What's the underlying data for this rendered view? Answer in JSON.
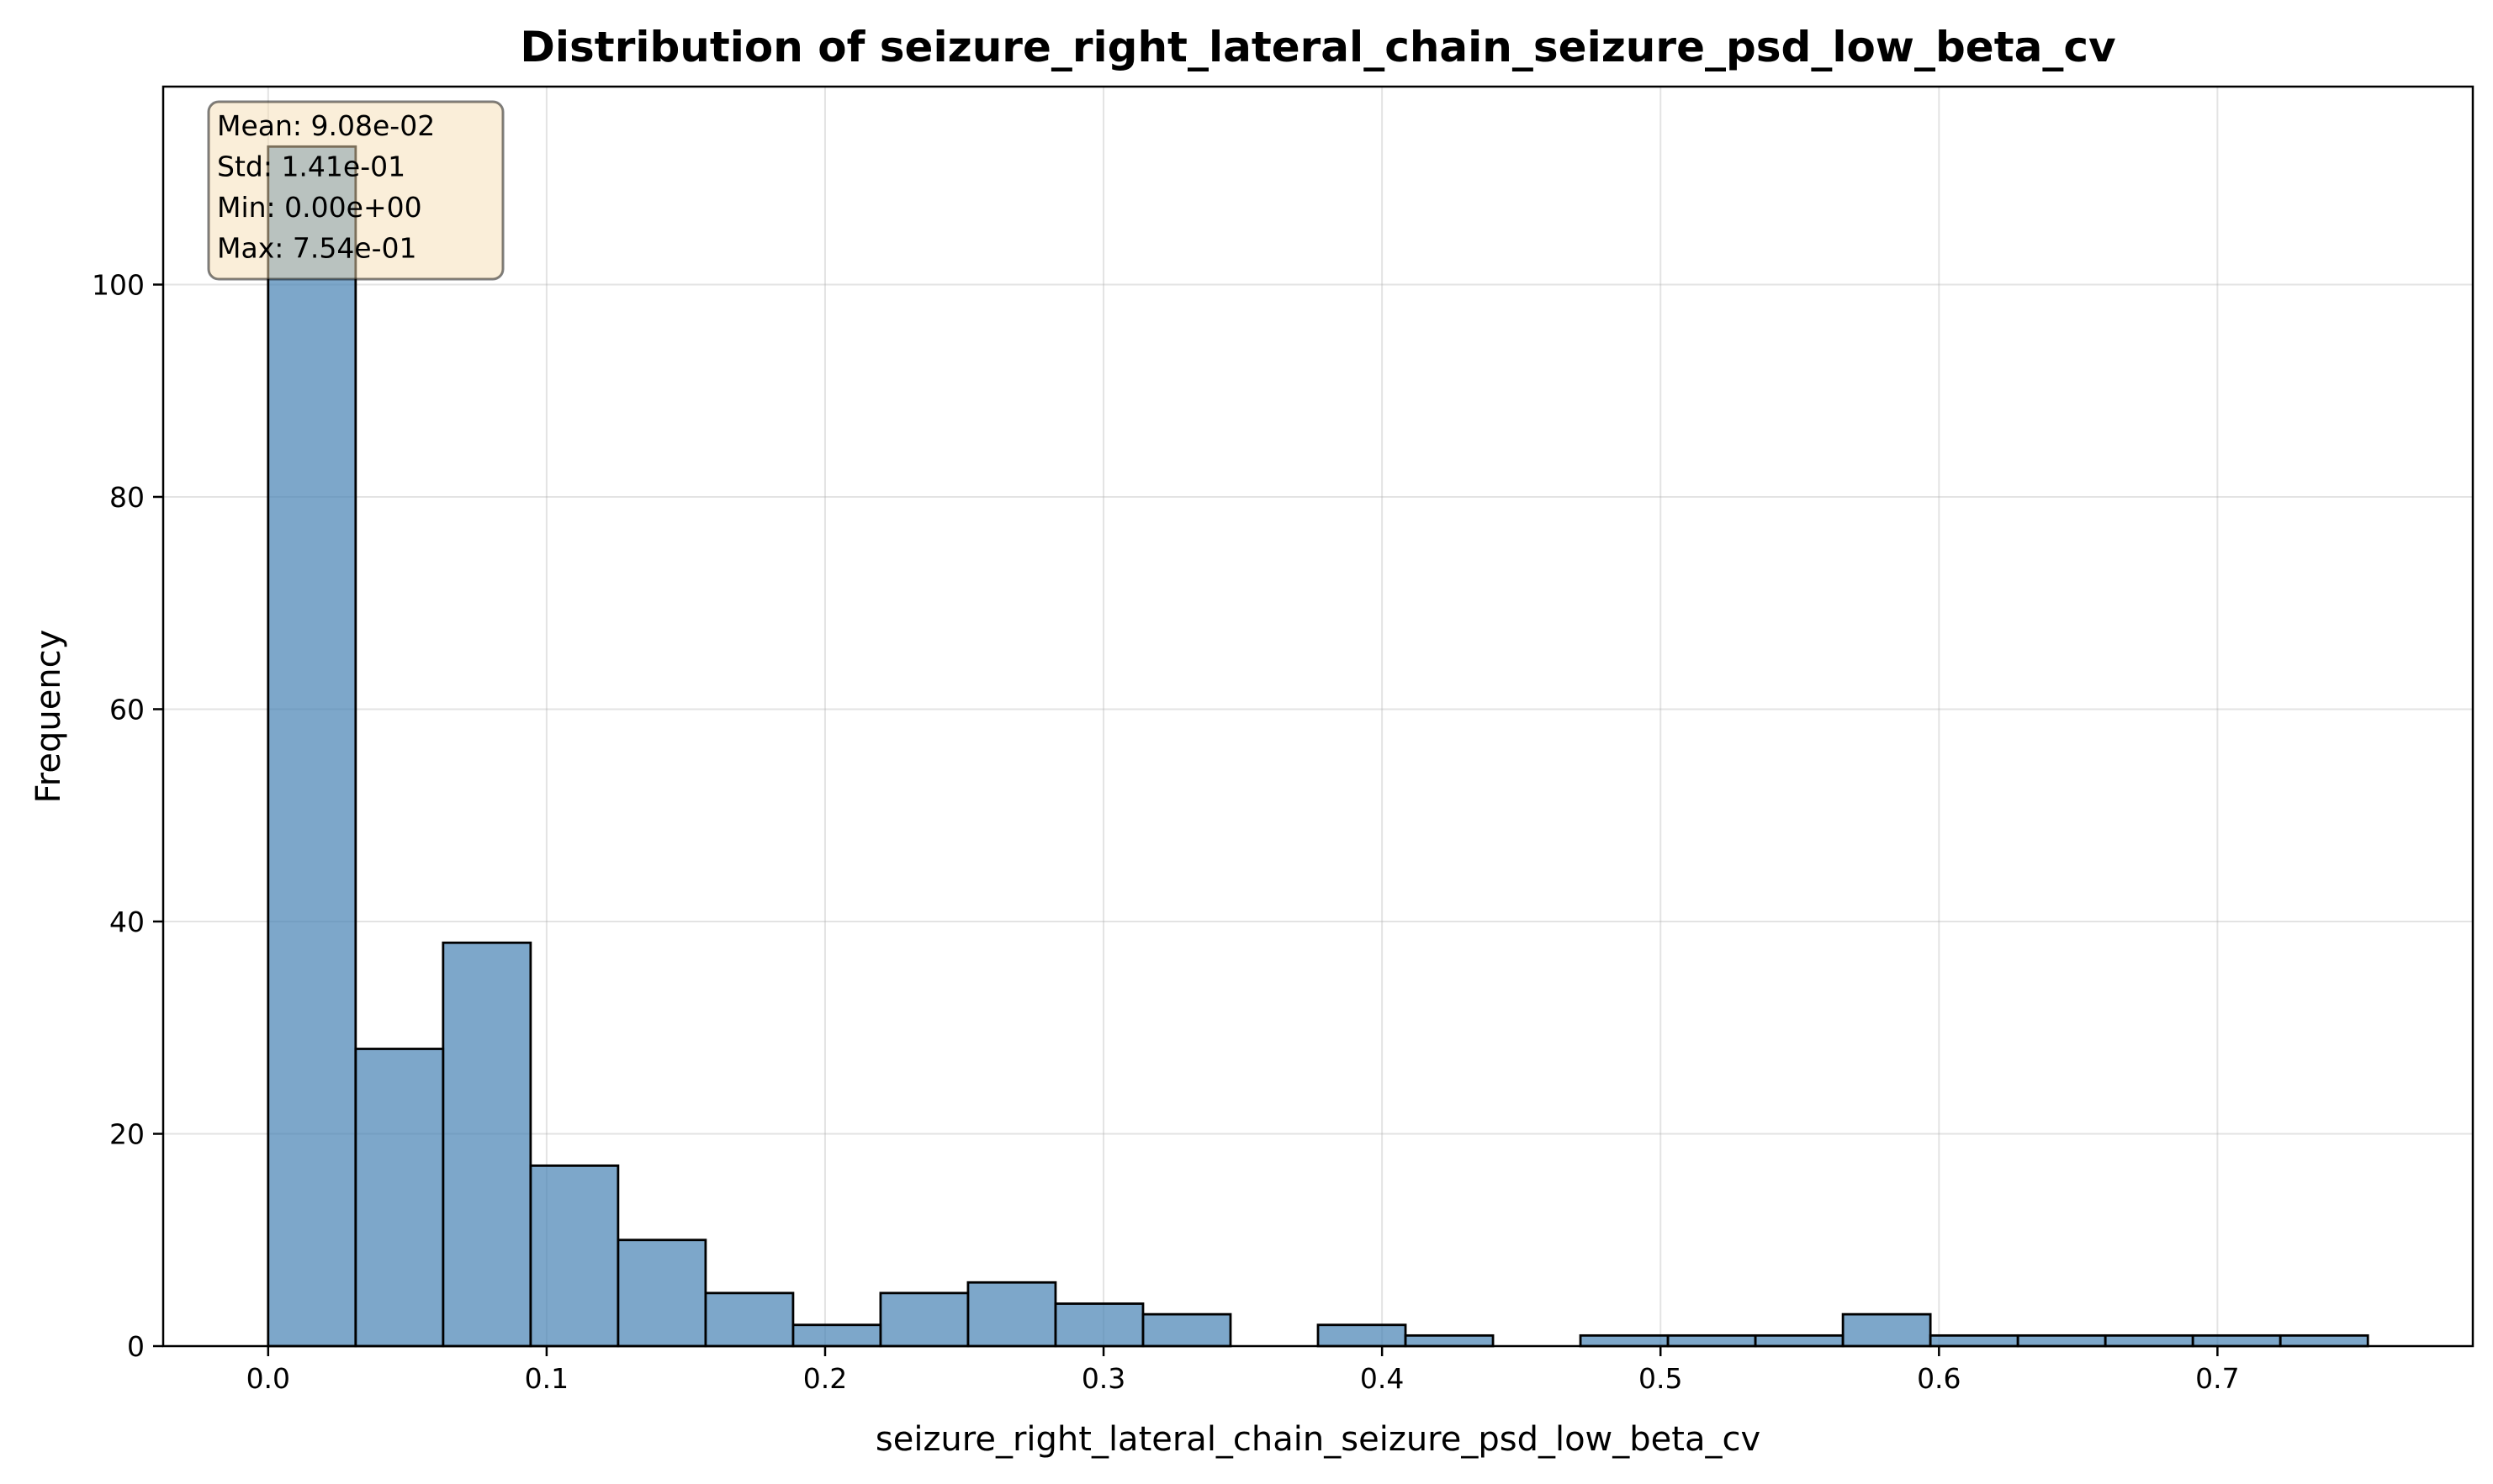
{
  "chart_data": {
    "type": "histogram",
    "title": "Distribution of seizure_right_lateral_chain_seizure_psd_low_beta_cv",
    "xlabel": "seizure_right_lateral_chain_seizure_psd_low_beta_cv",
    "ylabel": "Frequency",
    "xlim": [
      -0.0377,
      0.7917
    ],
    "ylim": [
      0,
      118.65
    ],
    "bin_start": 0.0,
    "bin_width": 0.031417,
    "values": [
      113,
      28,
      38,
      17,
      10,
      5,
      2,
      5,
      6,
      4,
      3,
      0,
      2,
      1,
      0,
      1,
      1,
      1,
      3,
      1,
      1,
      1,
      1,
      1
    ],
    "x_ticks": [
      0.0,
      0.1,
      0.2,
      0.3,
      0.4,
      0.5,
      0.6,
      0.7
    ],
    "x_tick_labels": [
      "0.0",
      "0.1",
      "0.2",
      "0.3",
      "0.4",
      "0.5",
      "0.6",
      "0.7"
    ],
    "y_ticks": [
      0,
      20,
      40,
      60,
      80,
      100
    ],
    "y_tick_labels": [
      "0",
      "20",
      "40",
      "60",
      "80",
      "100"
    ],
    "grid": true,
    "bar_color": "#4682b4",
    "bar_edge_color": "#000000",
    "stats_box": {
      "lines": [
        "Mean: 9.08e-02",
        "Std: 1.41e-01",
        "Min: 0.00e+00",
        "Max: 7.54e-01"
      ],
      "placement": "top-left",
      "background": "#f5deb3"
    }
  }
}
